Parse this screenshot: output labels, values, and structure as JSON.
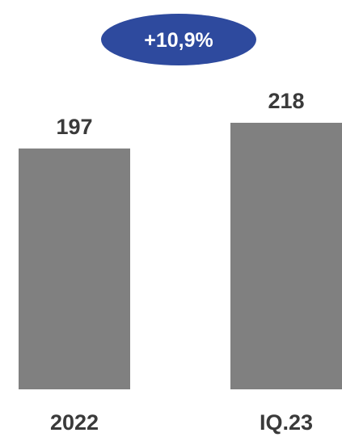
{
  "chart_data": {
    "type": "bar",
    "categories": [
      "2022",
      "IQ.23"
    ],
    "values": [
      197,
      218
    ],
    "data_labels": [
      "197",
      "218"
    ],
    "annotation": "+10,9%",
    "ylim": [
      0,
      225
    ],
    "grid": false,
    "legend": "none"
  },
  "colors": {
    "bar": "#808080",
    "badge": "#2e4a9e",
    "badge_text": "#ffffff",
    "label_text": "#3a3a3a"
  }
}
